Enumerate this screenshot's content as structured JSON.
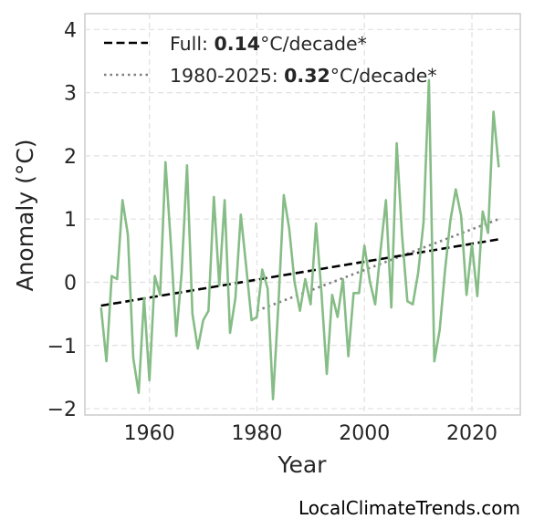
{
  "chart_data": {
    "type": "line",
    "title": "",
    "xlabel": "Year",
    "ylabel": "Anomaly (°C)",
    "xlim": [
      1948,
      2029
    ],
    "ylim": [
      -2.1,
      4.25
    ],
    "x_ticks": [
      1960,
      1980,
      2000,
      2020
    ],
    "y_ticks": [
      -2,
      -1,
      0,
      1,
      2,
      3,
      4
    ],
    "y_tick_labels": [
      "−2",
      "−1",
      "0",
      "1",
      "2",
      "3",
      "4"
    ],
    "grid": true,
    "legend_position": "top-left",
    "colors": {
      "series": "#86bc86",
      "full_trend": "#000000",
      "recent_trend": "#808080"
    },
    "series": [
      {
        "x": [
          1951,
          1952,
          1953,
          1954,
          1955,
          1956,
          1957,
          1958,
          1959,
          1960,
          1961,
          1962,
          1963,
          1964,
          1965,
          1966,
          1967,
          1968,
          1969,
          1970,
          1971,
          1972,
          1973,
          1974,
          1975,
          1976,
          1977,
          1978,
          1979,
          1980,
          1981,
          1982,
          1983,
          1984,
          1985,
          1986,
          1987,
          1988,
          1989,
          1990,
          1991,
          1992,
          1993,
          1994,
          1995,
          1996,
          1997,
          1998,
          1999,
          2000,
          2001,
          2002,
          2003,
          2004,
          2005,
          2006,
          2007,
          2008,
          2009,
          2010,
          2011,
          2012,
          2013,
          2014,
          2015,
          2016,
          2017,
          2018,
          2019,
          2020,
          2021,
          2022,
          2023,
          2024,
          2025
        ],
        "values": [
          -0.4,
          -1.25,
          0.1,
          0.05,
          1.3,
          0.75,
          -1.2,
          -1.75,
          -0.25,
          -1.55,
          0.1,
          -0.2,
          1.9,
          0.6,
          -0.85,
          0.15,
          1.85,
          -0.5,
          -1.05,
          -0.6,
          -0.45,
          1.35,
          -0.05,
          1.3,
          -0.8,
          -0.25,
          1.07,
          0.25,
          -0.6,
          -0.55,
          0.2,
          -0.1,
          -1.85,
          -0.35,
          1.38,
          0.85,
          0.0,
          -0.45,
          0.05,
          -0.35,
          0.93,
          -0.15,
          -1.45,
          -0.2,
          -0.55,
          0.05,
          -1.17,
          -0.17,
          -0.17,
          0.58,
          0.02,
          -0.35,
          0.5,
          1.3,
          -0.4,
          2.2,
          0.75,
          -0.3,
          -0.35,
          0.15,
          0.95,
          3.2,
          -1.25,
          -0.75,
          0.2,
          0.98,
          1.47,
          1.05,
          -0.2,
          0.6,
          -0.22,
          1.12,
          0.78,
          2.7,
          1.82
        ]
      }
    ],
    "trend_lines": [
      {
        "name": "full",
        "x": [
          1951,
          2025
        ],
        "y": [
          -0.37,
          0.68
        ]
      },
      {
        "name": "recent",
        "x": [
          1980,
          2025
        ],
        "y": [
          -0.45,
          1.0
        ]
      }
    ],
    "legend": [
      {
        "style": "dashed",
        "prefix": "Full: ",
        "value": "0.14",
        "suffix": "°C/decade*"
      },
      {
        "style": "dotted",
        "prefix": "1980-2025: ",
        "value": "0.32",
        "suffix": "°C/decade*"
      }
    ]
  },
  "footer": {
    "credit": "LocalClimateTrends.com"
  }
}
